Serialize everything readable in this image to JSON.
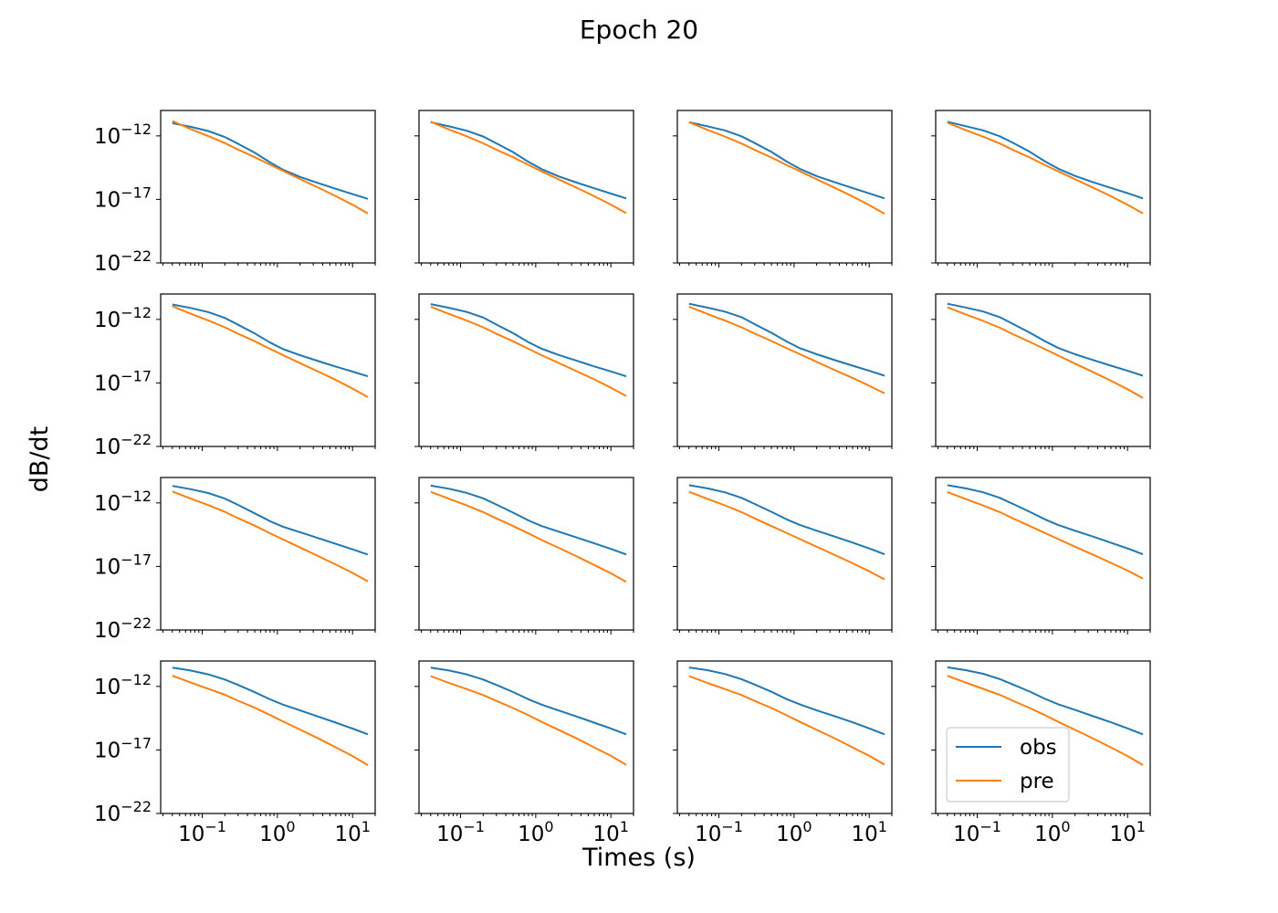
{
  "figure": {
    "title": "Epoch 20",
    "xlabel": "Times (s)",
    "ylabel": "dB/dt"
  },
  "colors": {
    "obs": "#1f77b4",
    "pre": "#ff7f0e",
    "frame": "#000000",
    "background": "#ffffff"
  },
  "chart_data": {
    "type": "line",
    "layout": "4x4 grid of small multiples, shared axes",
    "x_scale": "log",
    "y_scale": "log",
    "xlim": [
      0.028,
      20
    ],
    "ylim": [
      1e-22,
      1e-10
    ],
    "x_ticks": [
      {
        "value": 0.1,
        "base": "10",
        "exp": "−1"
      },
      {
        "value": 1,
        "base": "10",
        "exp": "0"
      },
      {
        "value": 10,
        "base": "10",
        "exp": "1"
      }
    ],
    "y_ticks": [
      {
        "value": 1e-12,
        "base": "10",
        "exp": "−12"
      },
      {
        "value": 1e-17,
        "base": "10",
        "exp": "−17"
      },
      {
        "value": 1e-22,
        "base": "10",
        "exp": "−22"
      }
    ],
    "legend": {
      "location": "lower-left of bottom-right panel",
      "entries": [
        "obs",
        "pre"
      ]
    },
    "series_names": [
      "obs",
      "pre"
    ],
    "x": [
      0.04,
      0.07,
      0.12,
      0.2,
      0.3,
      0.5,
      0.8,
      1.2,
      2.0,
      3.5,
      6.0,
      10.0,
      16.0
    ],
    "panels": [
      {
        "obs": [
          1e-11,
          5.2e-12,
          2.4e-12,
          8.1e-13,
          2.4e-13,
          4.7e-14,
          8.2e-15,
          2.1e-15,
          5.9e-16,
          1.9e-16,
          6.8e-17,
          2.6e-17,
          1.1e-17
        ],
        "pre": [
          1.5e-11,
          3.4e-12,
          9.9e-13,
          2.7e-13,
          8.4e-14,
          2.1e-14,
          5.4e-15,
          1.7e-15,
          4e-16,
          8.5e-17,
          1.8e-17,
          3.8e-18,
          7.9e-19
        ]
      },
      {
        "obs": [
          1.2e-11,
          5.6e-12,
          2.6e-12,
          9e-13,
          2.6e-13,
          5.3e-14,
          9e-15,
          2.4e-15,
          6.6e-16,
          2.1e-16,
          7.6e-17,
          2.9e-17,
          1.2e-17
        ],
        "pre": [
          1.3e-11,
          3.2e-12,
          9.4e-13,
          2.6e-13,
          8.1e-14,
          2.1e-14,
          5.2e-15,
          1.6e-15,
          3.9e-16,
          8.4e-17,
          1.8e-17,
          3.9e-18,
          8.2e-19
        ]
      },
      {
        "obs": [
          1.2e-11,
          5.7e-12,
          2.7e-12,
          9.2e-13,
          2.7e-13,
          5.5e-14,
          9.4e-15,
          2.5e-15,
          6.8e-16,
          2.2e-16,
          7.9e-17,
          3e-17,
          1.2e-17
        ],
        "pre": [
          1.2e-11,
          3e-12,
          9e-13,
          2.5e-13,
          7.9e-14,
          2e-14,
          5e-15,
          1.6e-15,
          3.8e-16,
          8e-17,
          1.7e-17,
          3.6e-18,
          7.5e-19
        ]
      },
      {
        "obs": [
          1.3e-11,
          5.8e-12,
          2.7e-12,
          9.3e-13,
          2.8e-13,
          5.6e-14,
          9.6e-15,
          2.6e-15,
          7e-16,
          2.2e-16,
          8e-17,
          3.1e-17,
          1.2e-17
        ],
        "pre": [
          1.1e-11,
          2.8e-12,
          8.6e-13,
          2.5e-13,
          7.7e-14,
          2e-14,
          5e-15,
          1.6e-15,
          3.9e-16,
          8.2e-17,
          1.8e-17,
          3.8e-18,
          8e-19
        ]
      },
      {
        "obs": [
          1.5e-11,
          8e-12,
          3.8e-12,
          1.3e-12,
          3.8e-13,
          7.7e-14,
          1.5e-14,
          4.5e-15,
          1.5e-15,
          5.2e-16,
          1.9e-16,
          7.8e-17,
          3.3e-17
        ],
        "pre": [
          1.1e-11,
          2.8e-12,
          8.4e-13,
          2.4e-13,
          7.5e-14,
          1.9e-14,
          4.8e-15,
          1.5e-15,
          3.6e-16,
          7.8e-17,
          1.7e-17,
          3.6e-18,
          7.6e-19
        ]
      },
      {
        "obs": [
          1.6e-11,
          8.2e-12,
          3.9e-12,
          1.4e-12,
          3.9e-13,
          8.2e-14,
          1.6e-14,
          4.9e-15,
          1.6e-15,
          5.6e-16,
          2e-16,
          8e-17,
          3.3e-17
        ],
        "pre": [
          1e-11,
          2.7e-12,
          8.2e-13,
          2.4e-13,
          7.4e-14,
          1.9e-14,
          4.9e-15,
          1.5e-15,
          3.8e-16,
          8.4e-17,
          1.9e-17,
          4.2e-18,
          9.3e-19
        ]
      },
      {
        "obs": [
          1.7e-11,
          8.5e-12,
          4.1e-12,
          1.5e-12,
          4.2e-13,
          8.8e-14,
          1.8e-14,
          5.4e-15,
          1.8e-15,
          6.2e-16,
          2.3e-16,
          9e-17,
          3.7e-17
        ],
        "pre": [
          1e-11,
          2.7e-12,
          8.1e-13,
          2.4e-13,
          7.6e-14,
          2e-14,
          5.4e-15,
          1.8e-15,
          4.5e-16,
          1e-16,
          2.5e-17,
          6e-18,
          1.5e-18
        ]
      },
      {
        "obs": [
          1.7e-11,
          8.6e-12,
          4.2e-12,
          1.5e-12,
          4.3e-13,
          9e-14,
          1.9e-14,
          5.6e-15,
          1.8e-15,
          6.3e-16,
          2.3e-16,
          9e-17,
          3.7e-17
        ],
        "pre": [
          9e-12,
          2.5e-12,
          7.6e-13,
          2.2e-13,
          6.8e-14,
          1.7e-14,
          4.5e-15,
          1.4e-15,
          3.3e-16,
          7e-17,
          1.5e-17,
          3.2e-18,
          6.5e-19
        ]
      },
      {
        "obs": [
          2.2e-11,
          1.2e-11,
          6e-12,
          2.2e-12,
          7e-13,
          1.5e-13,
          3.6e-14,
          1.3e-14,
          5e-15,
          1.7e-15,
          6e-16,
          2.2e-16,
          8.6e-17
        ],
        "pre": [
          8e-12,
          2.2e-12,
          6.8e-13,
          2e-13,
          6.2e-14,
          1.6e-14,
          4.1e-15,
          1.3e-15,
          3.1e-16,
          6.5e-17,
          1.4e-17,
          3.1e-18,
          6.8e-19
        ]
      },
      {
        "obs": [
          2.3e-11,
          1.3e-11,
          6.2e-12,
          2.3e-12,
          7.5e-13,
          1.7e-13,
          4.2e-14,
          1.5e-14,
          5.6e-15,
          1.9e-15,
          6.6e-16,
          2.4e-16,
          8.8e-17
        ],
        "pre": [
          7.5e-12,
          2.1e-12,
          6.5e-13,
          1.9e-13,
          6e-14,
          1.5e-14,
          4e-15,
          1.2e-15,
          3e-16,
          6.2e-17,
          1.3e-17,
          2.9e-18,
          6e-19
        ]
      },
      {
        "obs": [
          2.5e-11,
          1.4e-11,
          6.8e-12,
          2.5e-12,
          8.2e-13,
          2e-13,
          5e-14,
          1.8e-14,
          6.5e-15,
          2.2e-15,
          7.5e-16,
          2.6e-16,
          9e-17
        ],
        "pre": [
          7.5e-12,
          2.1e-12,
          6.4e-13,
          1.9e-13,
          6e-14,
          1.5e-14,
          4.2e-15,
          1.4e-15,
          3.5e-16,
          7.8e-17,
          1.8e-17,
          4.2e-18,
          9.5e-19
        ]
      },
      {
        "obs": [
          2.5e-11,
          1.4e-11,
          6.8e-12,
          2.5e-12,
          8.2e-13,
          2e-13,
          5e-14,
          1.8e-14,
          6.5e-15,
          2.2e-15,
          7.4e-16,
          2.6e-16,
          9e-17
        ],
        "pre": [
          7.2e-12,
          2e-12,
          6.2e-13,
          1.9e-13,
          5.9e-14,
          1.5e-14,
          4.2e-15,
          1.4e-15,
          3.6e-16,
          8.2e-17,
          1.9e-17,
          4.8e-18,
          1.1e-18
        ]
      },
      {
        "obs": [
          3e-11,
          1.8e-11,
          9e-12,
          3.5e-12,
          1.3e-12,
          3.5e-13,
          9.6e-14,
          3.6e-14,
          1.3e-14,
          4.2e-15,
          1.4e-15,
          4.8e-16,
          1.7e-16
        ],
        "pre": [
          7e-12,
          2e-12,
          6.5e-13,
          2.2e-13,
          7.5e-14,
          2.1e-14,
          5.6e-15,
          1.7e-15,
          4e-16,
          8e-17,
          1.6e-17,
          3.3e-18,
          6.3e-19
        ]
      },
      {
        "obs": [
          3e-11,
          1.8e-11,
          9e-12,
          3.5e-12,
          1.3e-12,
          3.6e-13,
          9.8e-14,
          3.7e-14,
          1.3e-14,
          4.3e-15,
          1.4e-15,
          4.9e-16,
          1.7e-16
        ],
        "pre": [
          6.5e-12,
          1.9e-12,
          6.2e-13,
          2.1e-13,
          7.2e-14,
          2e-14,
          5.4e-15,
          1.6e-15,
          3.9e-16,
          8e-17,
          1.6e-17,
          3.4e-18,
          6.8e-19
        ]
      },
      {
        "obs": [
          3.1e-11,
          1.9e-11,
          9.5e-12,
          3.7e-12,
          1.4e-12,
          3.8e-13,
          1e-13,
          3.8e-14,
          1.3e-14,
          4.4e-15,
          1.5e-15,
          5e-16,
          1.7e-16
        ],
        "pre": [
          6.5e-12,
          1.9e-12,
          6.2e-13,
          2.1e-13,
          7.2e-14,
          2e-14,
          5.3e-15,
          1.6e-15,
          3.8e-16,
          7.9e-17,
          1.6e-17,
          3.5e-18,
          7e-19
        ]
      },
      {
        "obs": [
          3.2e-11,
          1.9e-11,
          9.8e-12,
          3.8e-12,
          1.4e-12,
          3.9e-13,
          1.05e-13,
          3.9e-14,
          1.4e-14,
          4.5e-15,
          1.5e-15,
          5e-16,
          1.7e-16
        ],
        "pre": [
          6.8e-12,
          2e-12,
          6.4e-13,
          2.2e-13,
          7.4e-14,
          2e-14,
          5.4e-15,
          1.6e-15,
          3.8e-16,
          7.8e-17,
          1.6e-17,
          3.3e-18,
          6.5e-19
        ]
      }
    ]
  }
}
